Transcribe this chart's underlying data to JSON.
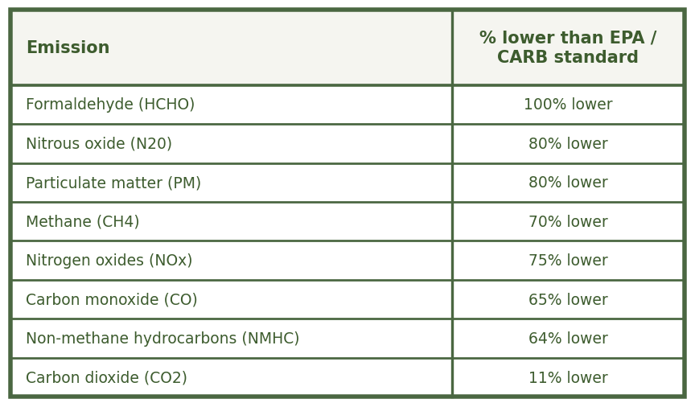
{
  "header": [
    "Emission",
    "% lower than EPA /\nCARB standard"
  ],
  "rows": [
    [
      "Formaldehyde (HCHO)",
      "100% lower"
    ],
    [
      "Nitrous oxide (N20)",
      "80% lower"
    ],
    [
      "Particulate matter (PM)",
      "80% lower"
    ],
    [
      "Methane (CH4)",
      "70% lower"
    ],
    [
      "Nitrogen oxides (NOx)",
      "75% lower"
    ],
    [
      "Carbon monoxide (CO)",
      "65% lower"
    ],
    [
      "Non-methane hydrocarbons (NMHC)",
      "64% lower"
    ],
    [
      "Carbon dioxide (CO2)",
      "11% lower"
    ]
  ],
  "header_bg": "#f5f5f0",
  "header_text_color": "#3d5c2e",
  "row_bg": "#ffffff",
  "row_text_color": "#3d5c2e",
  "border_color": "#4a6741",
  "col_split": 0.655,
  "figsize": [
    8.64,
    5.02
  ],
  "dpi": 100,
  "header_fontsize": 15,
  "row_fontsize": 13.5,
  "background_color": "#ffffff"
}
